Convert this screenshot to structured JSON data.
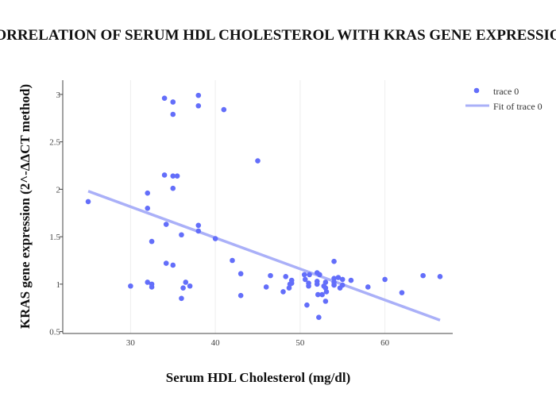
{
  "chart_data": {
    "type": "scatter",
    "title": "CORRELATION OF SERUM HDL CHOLESTEROL WITH KRAS GENE EXPRESSION",
    "xlabel": "Serum HDL Cholesterol  (mg/dl)",
    "ylabel": "KRAS gene expression (2^-ΔΔCT method)",
    "xlim": [
      22,
      68
    ],
    "ylim": [
      0.48,
      3.15
    ],
    "xticks": [
      30,
      40,
      50,
      60
    ],
    "yticks": [
      0.5,
      1,
      1.5,
      2,
      2.5,
      3
    ],
    "grid": "vertical",
    "legend_position": "top-right",
    "colors": {
      "points": "#636efa",
      "fit": "#aab0f8"
    },
    "series": [
      {
        "name": "trace 0",
        "mode": "markers",
        "points": [
          [
            25,
            1.87
          ],
          [
            30,
            0.98
          ],
          [
            32,
            1.96
          ],
          [
            32,
            1.8
          ],
          [
            32,
            1.02
          ],
          [
            32.5,
            1.45
          ],
          [
            32.5,
            1.0
          ],
          [
            32.5,
            0.97
          ],
          [
            34,
            2.96
          ],
          [
            34,
            2.15
          ],
          [
            34.2,
            1.63
          ],
          [
            34.2,
            1.22
          ],
          [
            35,
            2.92
          ],
          [
            35,
            2.79
          ],
          [
            35,
            2.14
          ],
          [
            35,
            2.01
          ],
          [
            35,
            1.2
          ],
          [
            35.5,
            2.14
          ],
          [
            36,
            1.52
          ],
          [
            36,
            0.85
          ],
          [
            36.2,
            0.96
          ],
          [
            36.5,
            1.02
          ],
          [
            37,
            0.98
          ],
          [
            38,
            2.99
          ],
          [
            38,
            2.88
          ],
          [
            38,
            1.62
          ],
          [
            38,
            1.56
          ],
          [
            40,
            1.48
          ],
          [
            41,
            2.84
          ],
          [
            42,
            1.25
          ],
          [
            43,
            1.11
          ],
          [
            43,
            0.88
          ],
          [
            45,
            2.3
          ],
          [
            46,
            0.97
          ],
          [
            46.5,
            1.09
          ],
          [
            48,
            0.92
          ],
          [
            48.3,
            1.08
          ],
          [
            48.7,
            0.96
          ],
          [
            48.8,
            1.0
          ],
          [
            49,
            1.04
          ],
          [
            49,
            1.01
          ],
          [
            50.5,
            1.1
          ],
          [
            50.6,
            1.05
          ],
          [
            50.8,
            0.78
          ],
          [
            51,
            1.01
          ],
          [
            51,
            0.98
          ],
          [
            51.1,
            1.1
          ],
          [
            52,
            1.12
          ],
          [
            52,
            1.03
          ],
          [
            52,
            1.0
          ],
          [
            52.1,
            0.89
          ],
          [
            52.2,
            0.65
          ],
          [
            52.3,
            1.1
          ],
          [
            52.6,
            0.89
          ],
          [
            52.8,
            0.98
          ],
          [
            53,
            1.02
          ],
          [
            53,
            0.96
          ],
          [
            53,
            0.82
          ],
          [
            53.1,
            0.92
          ],
          [
            54,
            1.24
          ],
          [
            54,
            1.06
          ],
          [
            54,
            1.02
          ],
          [
            54,
            0.99
          ],
          [
            54.5,
            1.07
          ],
          [
            54.7,
            0.96
          ],
          [
            55,
            1.05
          ],
          [
            55,
            0.99
          ],
          [
            56,
            1.04
          ],
          [
            58,
            0.97
          ],
          [
            60,
            1.05
          ],
          [
            62,
            0.91
          ],
          [
            64.5,
            1.09
          ],
          [
            66.5,
            1.08
          ]
        ]
      },
      {
        "name": "Fit of trace 0",
        "mode": "line",
        "x": [
          25,
          66.5
        ],
        "y": [
          1.98,
          0.62
        ]
      }
    ]
  }
}
